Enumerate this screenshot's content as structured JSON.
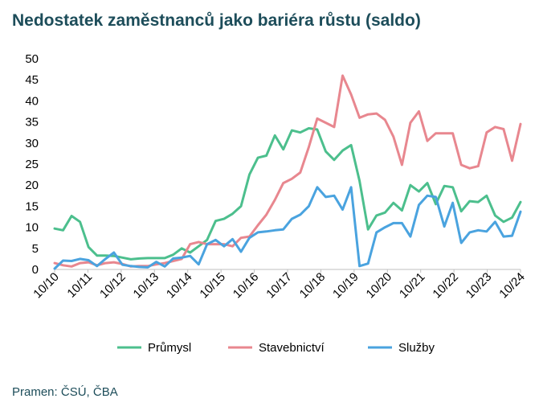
{
  "title": "Nedostatek zaměstnanců jako bariéra růstu (saldo)",
  "source": "Pramen: ČSÚ, ČBA",
  "colors": {
    "prumysl": "#4cbf8d",
    "stavebnictvi": "#e8878f",
    "sluzby": "#4aa3df"
  },
  "chart_data": {
    "type": "line",
    "title": "Nedostatek zaměstnanců jako bariéra růstu (saldo)",
    "xlabel": "",
    "ylabel": "",
    "ylim": [
      0,
      50
    ],
    "yticks": [
      "0",
      "5",
      "10",
      "15",
      "20",
      "25",
      "30",
      "35",
      "40",
      "45",
      "50"
    ],
    "x_tick_labels": [
      "10/10",
      "10/11",
      "10/12",
      "10/13",
      "10/14",
      "10/15",
      "10/16",
      "10/17",
      "10/18",
      "10/19",
      "10/20",
      "10/21",
      "10/22",
      "10/23",
      "10/24"
    ],
    "frequency": "quarterly",
    "legend_position": "bottom",
    "series": [
      {
        "name": "Průmysl",
        "values": [
          9.7,
          9.3,
          12.7,
          11.3,
          5.3,
          3.3,
          3.3,
          3.2,
          2.8,
          2.4,
          2.6,
          2.7,
          2.7,
          2.7,
          3.5,
          5.0,
          4.0,
          5.5,
          7.0,
          11.5,
          12.0,
          13.2,
          15.0,
          22.5,
          26.5,
          27.0,
          31.8,
          28.5,
          33.0,
          32.5,
          33.5,
          33.2,
          28.0,
          26.0,
          28.2,
          29.5,
          21.0,
          9.5,
          12.8,
          13.5,
          15.8,
          14.0,
          20.0,
          18.5,
          20.5,
          15.5,
          19.8,
          19.5,
          13.8,
          16.2,
          16.0,
          17.5,
          12.8,
          11.3,
          12.3,
          16.0
        ]
      },
      {
        "name": "Stavebnictví",
        "values": [
          1.5,
          1.0,
          0.7,
          1.5,
          1.7,
          1.0,
          1.5,
          1.7,
          1.3,
          0.7,
          0.8,
          0.8,
          1.2,
          1.5,
          2.0,
          2.5,
          6.0,
          6.5,
          6.0,
          6.0,
          6.0,
          5.5,
          7.5,
          7.8,
          10.5,
          13.0,
          16.5,
          20.5,
          21.5,
          23.0,
          29.0,
          35.8,
          34.8,
          33.8,
          46.0,
          41.5,
          36.0,
          36.8,
          37.0,
          35.5,
          31.5,
          24.8,
          34.8,
          37.5,
          30.5,
          32.3,
          32.3,
          32.3,
          24.8,
          24.0,
          24.5,
          32.5,
          33.8,
          33.3,
          25.8,
          34.5
        ]
      },
      {
        "name": "Služby",
        "values": [
          0.2,
          2.1,
          2.0,
          2.5,
          2.2,
          0.8,
          2.5,
          4.0,
          1.1,
          0.8,
          0.6,
          0.5,
          1.8,
          0.7,
          2.6,
          2.8,
          3.2,
          1.2,
          6.0,
          7.0,
          5.5,
          7.2,
          4.2,
          7.5,
          8.8,
          9.0,
          9.3,
          9.5,
          12.0,
          13.0,
          15.0,
          19.5,
          17.2,
          17.5,
          14.2,
          19.5,
          0.8,
          1.4,
          8.8,
          10.0,
          11.0,
          11.0,
          7.8,
          15.3,
          17.5,
          17.2,
          10.2,
          15.8,
          6.3,
          8.8,
          9.3,
          9.0,
          11.3,
          7.8,
          8.0,
          13.7
        ]
      }
    ]
  },
  "legend": [
    {
      "label": "Průmysl",
      "color_key": "prumysl"
    },
    {
      "label": "Stavebnictví",
      "color_key": "stavebnictvi"
    },
    {
      "label": "Služby",
      "color_key": "sluzby"
    }
  ]
}
